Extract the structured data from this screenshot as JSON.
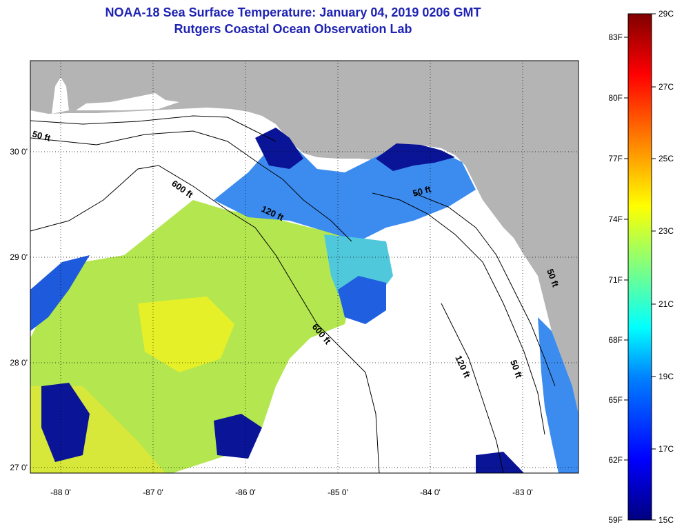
{
  "title": "NOAA-18 Sea Surface Temperature:  January 04, 2019 0206 GMT",
  "subtitle": "Rutgers Coastal Ocean Observation Lab",
  "x_ticks": [
    "-88 0'",
    "-87 0'",
    "-86 0'",
    "-85 0'",
    "-84 0'",
    "-83 0'"
  ],
  "y_ticks": [
    "30 0'",
    "29 0'",
    "28 0'",
    "27 0'"
  ],
  "contours": [
    "50 ft",
    "600 ft",
    "120 ft",
    "50 ft",
    "600 ft",
    "120 ft",
    "50 ft",
    "50 ft"
  ],
  "colorbar": {
    "fahrenheit": [
      "83F",
      "80F",
      "77F",
      "74F",
      "71F",
      "68F",
      "65F",
      "62F",
      "59F"
    ],
    "celsius": [
      "29C",
      "27C",
      "25C",
      "23C",
      "21C",
      "19C",
      "17C",
      "15C"
    ]
  },
  "colors": {
    "land": "#b4b4b4",
    "no_data": "#ffffff",
    "title": "#1f23b3"
  }
}
